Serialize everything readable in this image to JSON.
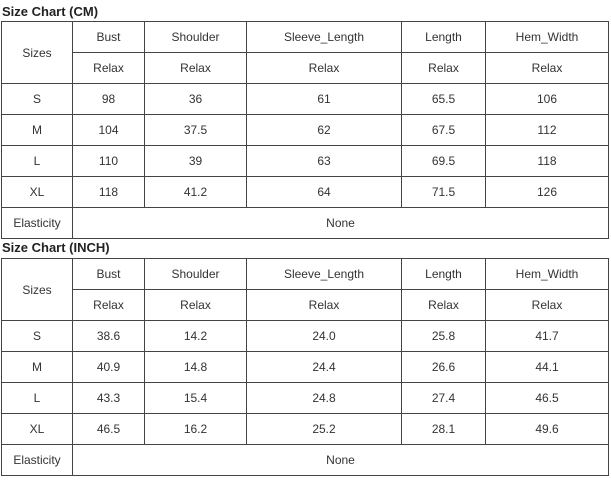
{
  "tables": [
    {
      "title": "Size Chart (CM)",
      "sizes_label": "Sizes",
      "columns": [
        "Bust",
        "Shoulder",
        "Sleeve_Length",
        "Length",
        "Hem_Width"
      ],
      "fit": [
        "Relax",
        "Relax",
        "Relax",
        "Relax",
        "Relax"
      ],
      "rows": [
        [
          "S",
          "98",
          "36",
          "61",
          "65.5",
          "106"
        ],
        [
          "M",
          "104",
          "37.5",
          "62",
          "67.5",
          "112"
        ],
        [
          "L",
          "110",
          "39",
          "63",
          "69.5",
          "118"
        ],
        [
          "XL",
          "118",
          "41.2",
          "64",
          "71.5",
          "126"
        ]
      ],
      "elasticity_label": "Elasticity",
      "elasticity_value": "None"
    },
    {
      "title": "Size Chart (INCH)",
      "sizes_label": "Sizes",
      "columns": [
        "Bust",
        "Shoulder",
        "Sleeve_Length",
        "Length",
        "Hem_Width"
      ],
      "fit": [
        "Relax",
        "Relax",
        "Relax",
        "Relax",
        "Relax"
      ],
      "rows": [
        [
          "S",
          "38.6",
          "14.2",
          "24.0",
          "25.8",
          "41.7"
        ],
        [
          "M",
          "40.9",
          "14.8",
          "24.4",
          "26.6",
          "44.1"
        ],
        [
          "L",
          "43.3",
          "15.4",
          "24.8",
          "27.4",
          "46.5"
        ],
        [
          "XL",
          "46.5",
          "16.2",
          "25.2",
          "28.1",
          "49.6"
        ]
      ],
      "elasticity_label": "Elasticity",
      "elasticity_value": "None"
    }
  ]
}
